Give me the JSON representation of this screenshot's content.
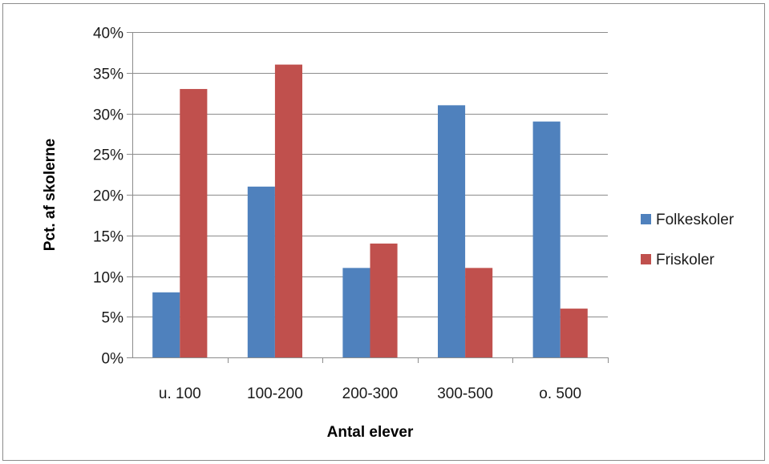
{
  "chart_data": {
    "type": "bar",
    "title": "",
    "xlabel": "Antal elever",
    "ylabel": "Pct. af skolerne",
    "categories": [
      "u. 100",
      "100-200",
      "200-300",
      "300-500",
      "o. 500"
    ],
    "series": [
      {
        "name": "Folkeskoler",
        "color": "#4f81bd",
        "values": [
          8,
          21,
          11,
          31,
          29
        ]
      },
      {
        "name": "Friskoler",
        "color": "#c0504d",
        "values": [
          33,
          36,
          14,
          11,
          6
        ]
      }
    ],
    "ylim": [
      0,
      40
    ],
    "ytick_step": 5,
    "ytick_format": "percent",
    "grid": true,
    "legend_position": "right"
  }
}
